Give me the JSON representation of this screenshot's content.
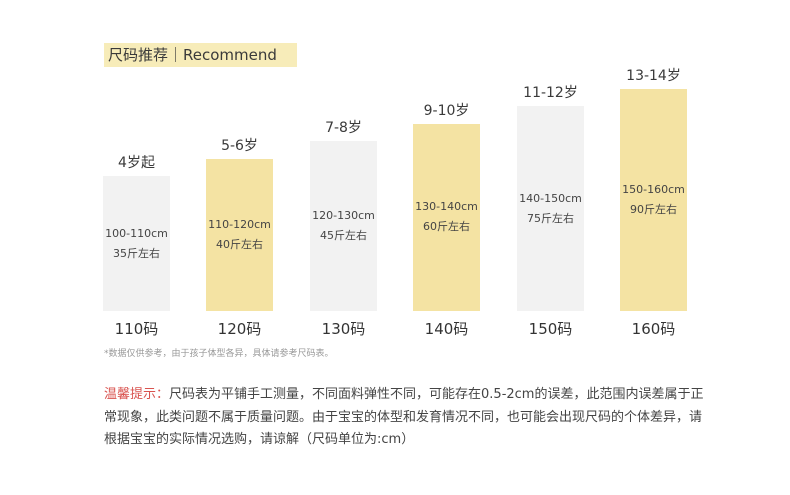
{
  "header": {
    "title": "尺码推荐｜Recommend"
  },
  "colors": {
    "highlight": "#f4e3a3",
    "plain": "#f2f2f2",
    "tip_red": "#d9534f"
  },
  "sizes": [
    {
      "age": "4岁起",
      "height": "100-110cm",
      "weight": "35斤左右",
      "size": "110码",
      "highlight": false,
      "level": 1
    },
    {
      "age": "5-6岁",
      "height": "110-120cm",
      "weight": "40斤左右",
      "size": "120码",
      "highlight": true,
      "level": 2
    },
    {
      "age": "7-8岁",
      "height": "120-130cm",
      "weight": "45斤左右",
      "size": "130码",
      "highlight": false,
      "level": 3
    },
    {
      "age": "9-10岁",
      "height": "130-140cm",
      "weight": "60斤左右",
      "size": "140码",
      "highlight": true,
      "level": 4
    },
    {
      "age": "11-12岁",
      "height": "140-150cm",
      "weight": "75斤左右",
      "size": "150码",
      "highlight": false,
      "level": 5
    },
    {
      "age": "13-14岁",
      "height": "150-160cm",
      "weight": "90斤左右",
      "size": "160码",
      "highlight": true,
      "level": 6
    }
  ],
  "footnote": "*数据仅供参考，由于孩子体型各异，具体请参考尺码表。",
  "tip": {
    "label": "温馨提示：",
    "text": "尺码表为平铺手工测量，不同面料弹性不同，可能存在0.5-2cm的误差，此范围内误差属于正常现象，此类问题不属于质量问题。由于宝宝的体型和发育情况不同，也可能会出现尺码的个体差异，请根据宝宝的实际情况选购，请谅解（尺码单位为:cm）"
  }
}
